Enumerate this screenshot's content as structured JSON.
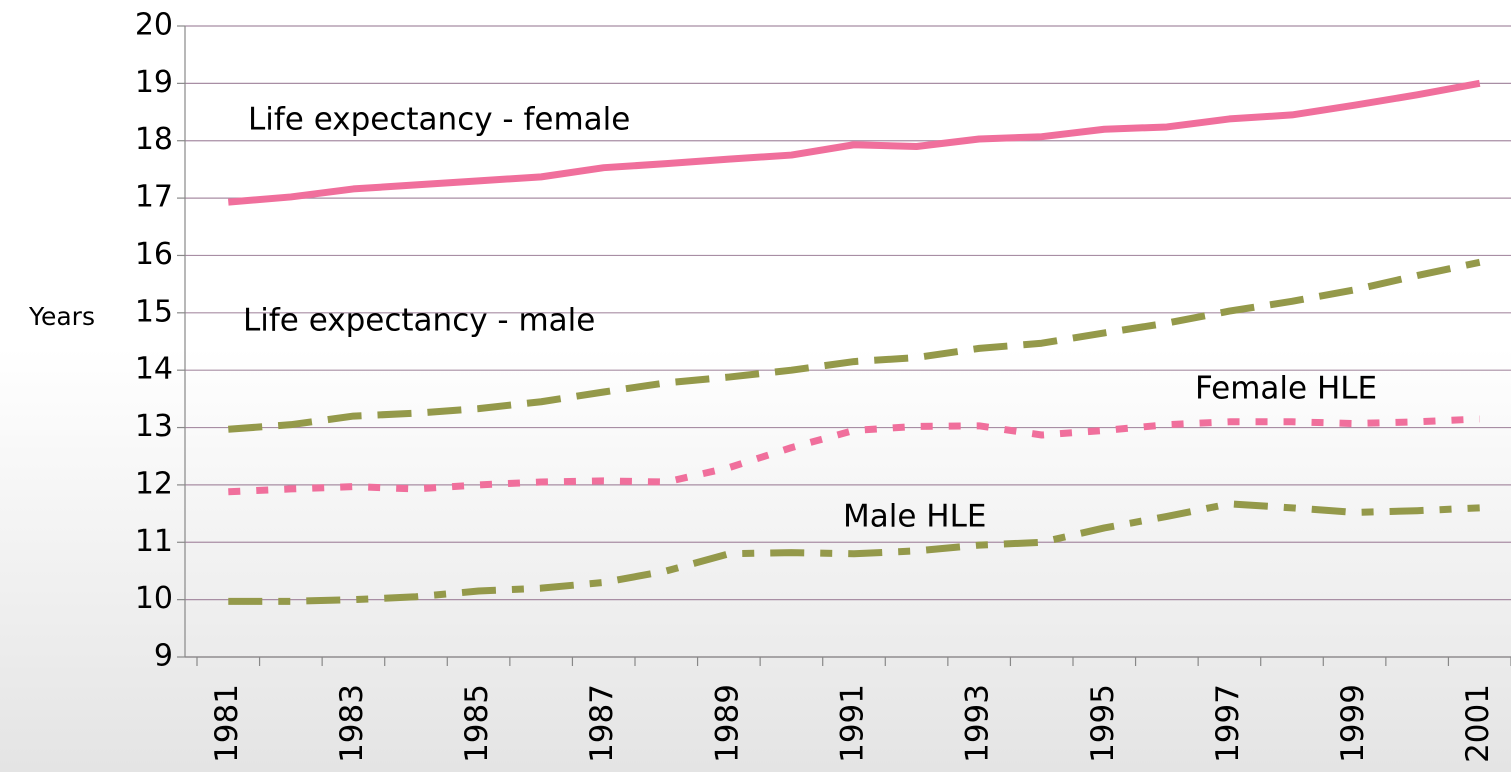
{
  "chart_data": {
    "type": "line",
    "y_label": "Years",
    "categories": [
      "1981",
      null,
      "1983",
      null,
      "1985",
      null,
      "1987",
      null,
      "1989",
      null,
      "1991",
      null,
      "1993",
      null,
      "1995",
      null,
      "1997",
      null,
      "1999",
      null,
      "2001"
    ],
    "series": [
      {
        "name": "Life expectancy - female",
        "color": "#f06f9c",
        "line_style": "solid",
        "values": [
          16.93,
          17.02,
          17.16,
          17.23,
          17.3,
          17.37,
          17.53,
          17.6,
          17.68,
          17.75,
          17.93,
          17.9,
          18.03,
          18.07,
          18.2,
          18.24,
          18.38,
          18.45,
          18.62,
          18.8,
          19.0
        ]
      },
      {
        "name": "Life expectancy - male",
        "color": "#94994a",
        "line_style": "dashed",
        "values": [
          12.97,
          13.05,
          13.2,
          13.25,
          13.33,
          13.45,
          13.62,
          13.78,
          13.88,
          14.0,
          14.15,
          14.22,
          14.38,
          14.47,
          14.65,
          14.82,
          15.03,
          15.2,
          15.4,
          15.65,
          15.88
        ]
      },
      {
        "name": "Female HLE",
        "color": "#f06f9c",
        "line_style": "dotted",
        "values": [
          11.88,
          11.93,
          11.97,
          11.93,
          12.0,
          12.05,
          12.07,
          12.05,
          12.3,
          12.65,
          12.95,
          13.02,
          13.03,
          12.87,
          12.95,
          13.05,
          13.1,
          13.1,
          13.07,
          13.1,
          13.15
        ]
      },
      {
        "name": "Male HLE",
        "color": "#94994a",
        "line_style": "dashdot",
        "values": [
          9.97,
          9.97,
          10.0,
          10.05,
          10.15,
          10.2,
          10.3,
          10.5,
          10.8,
          10.82,
          10.8,
          10.85,
          10.95,
          11.0,
          11.25,
          11.45,
          11.67,
          11.6,
          11.52,
          11.55,
          11.6
        ]
      }
    ],
    "ylim": [
      9,
      20
    ],
    "yticks": [
      9,
      10,
      11,
      12,
      13,
      14,
      15,
      16,
      17,
      18,
      19,
      20
    ],
    "grid": true,
    "grid_color": "#a88ea4"
  }
}
